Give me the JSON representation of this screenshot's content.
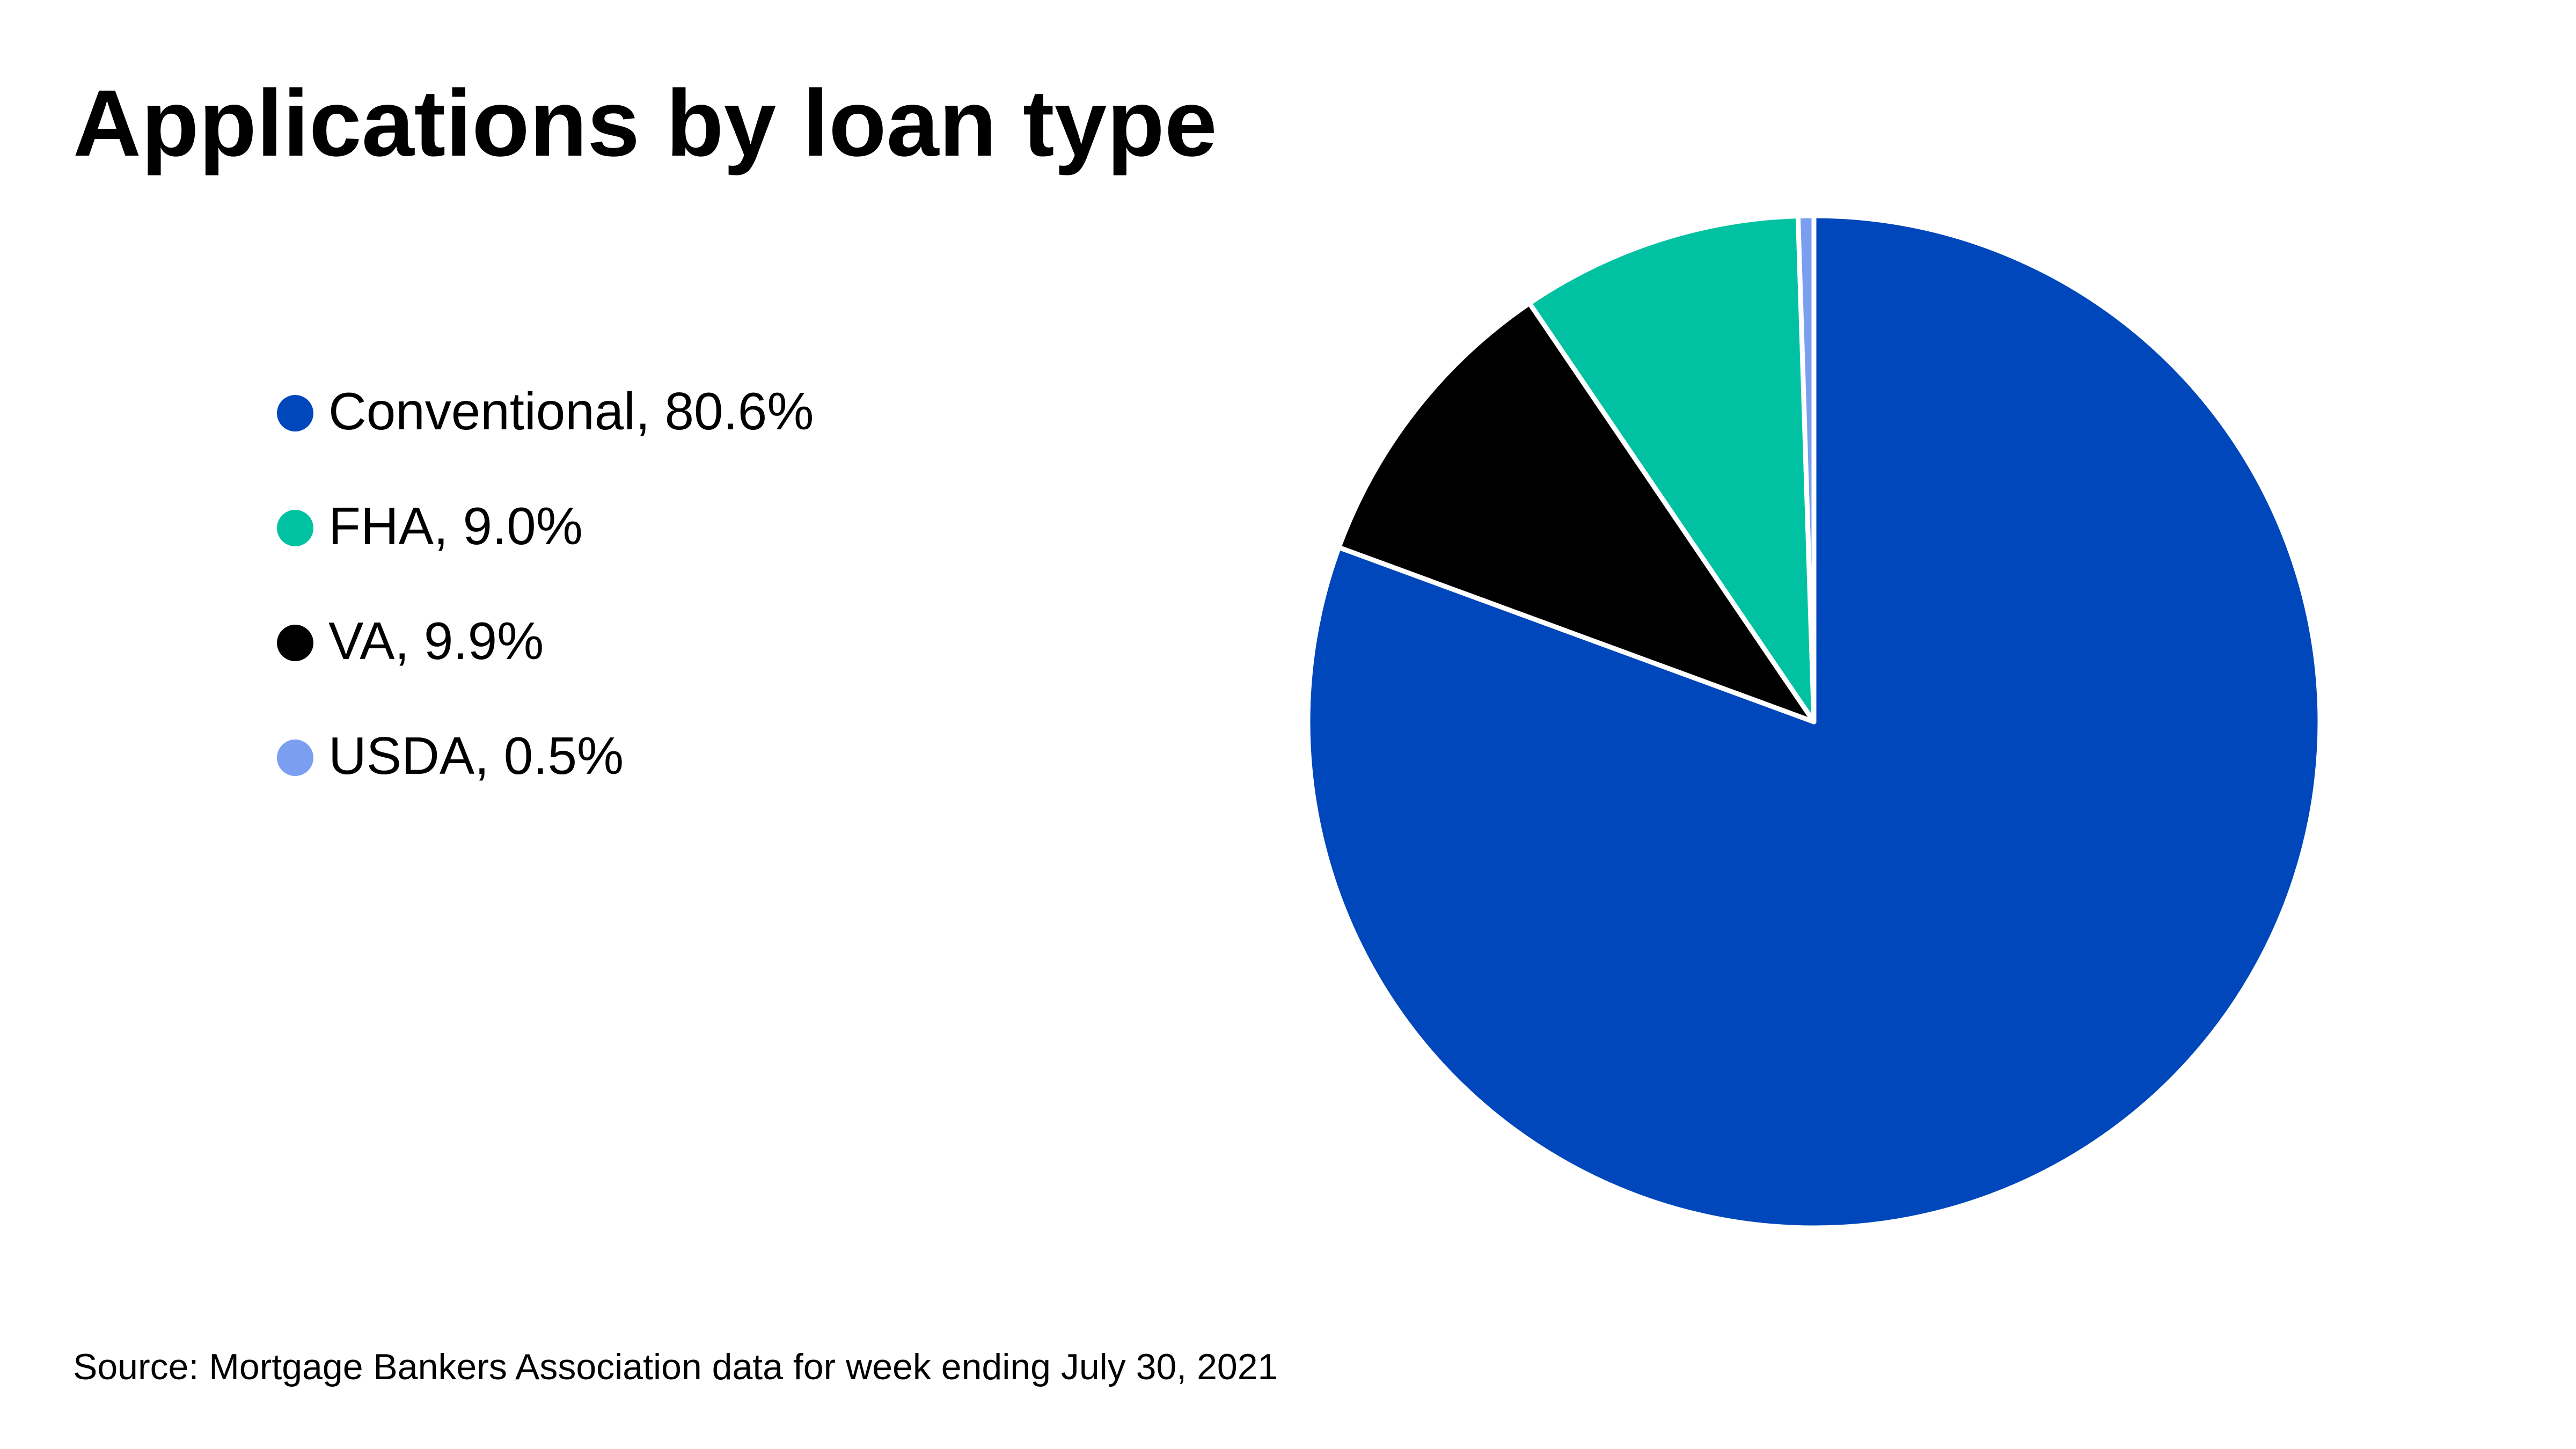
{
  "chart_data": {
    "type": "pie",
    "title": "Applications by loan type",
    "source": "Source: Mortgage Bankers Association data for week ending July 30, 2021",
    "categories": [
      "Conventional, 80.6%",
      "VA, 9.9%",
      "FHA, 9.0%",
      "USDA, 0.5%"
    ],
    "values": [
      80.6,
      9.9,
      9.0,
      0.5
    ],
    "colors": [
      "#0047bb",
      "#000000",
      "#00c2a2",
      "#7b9ff0"
    ]
  }
}
